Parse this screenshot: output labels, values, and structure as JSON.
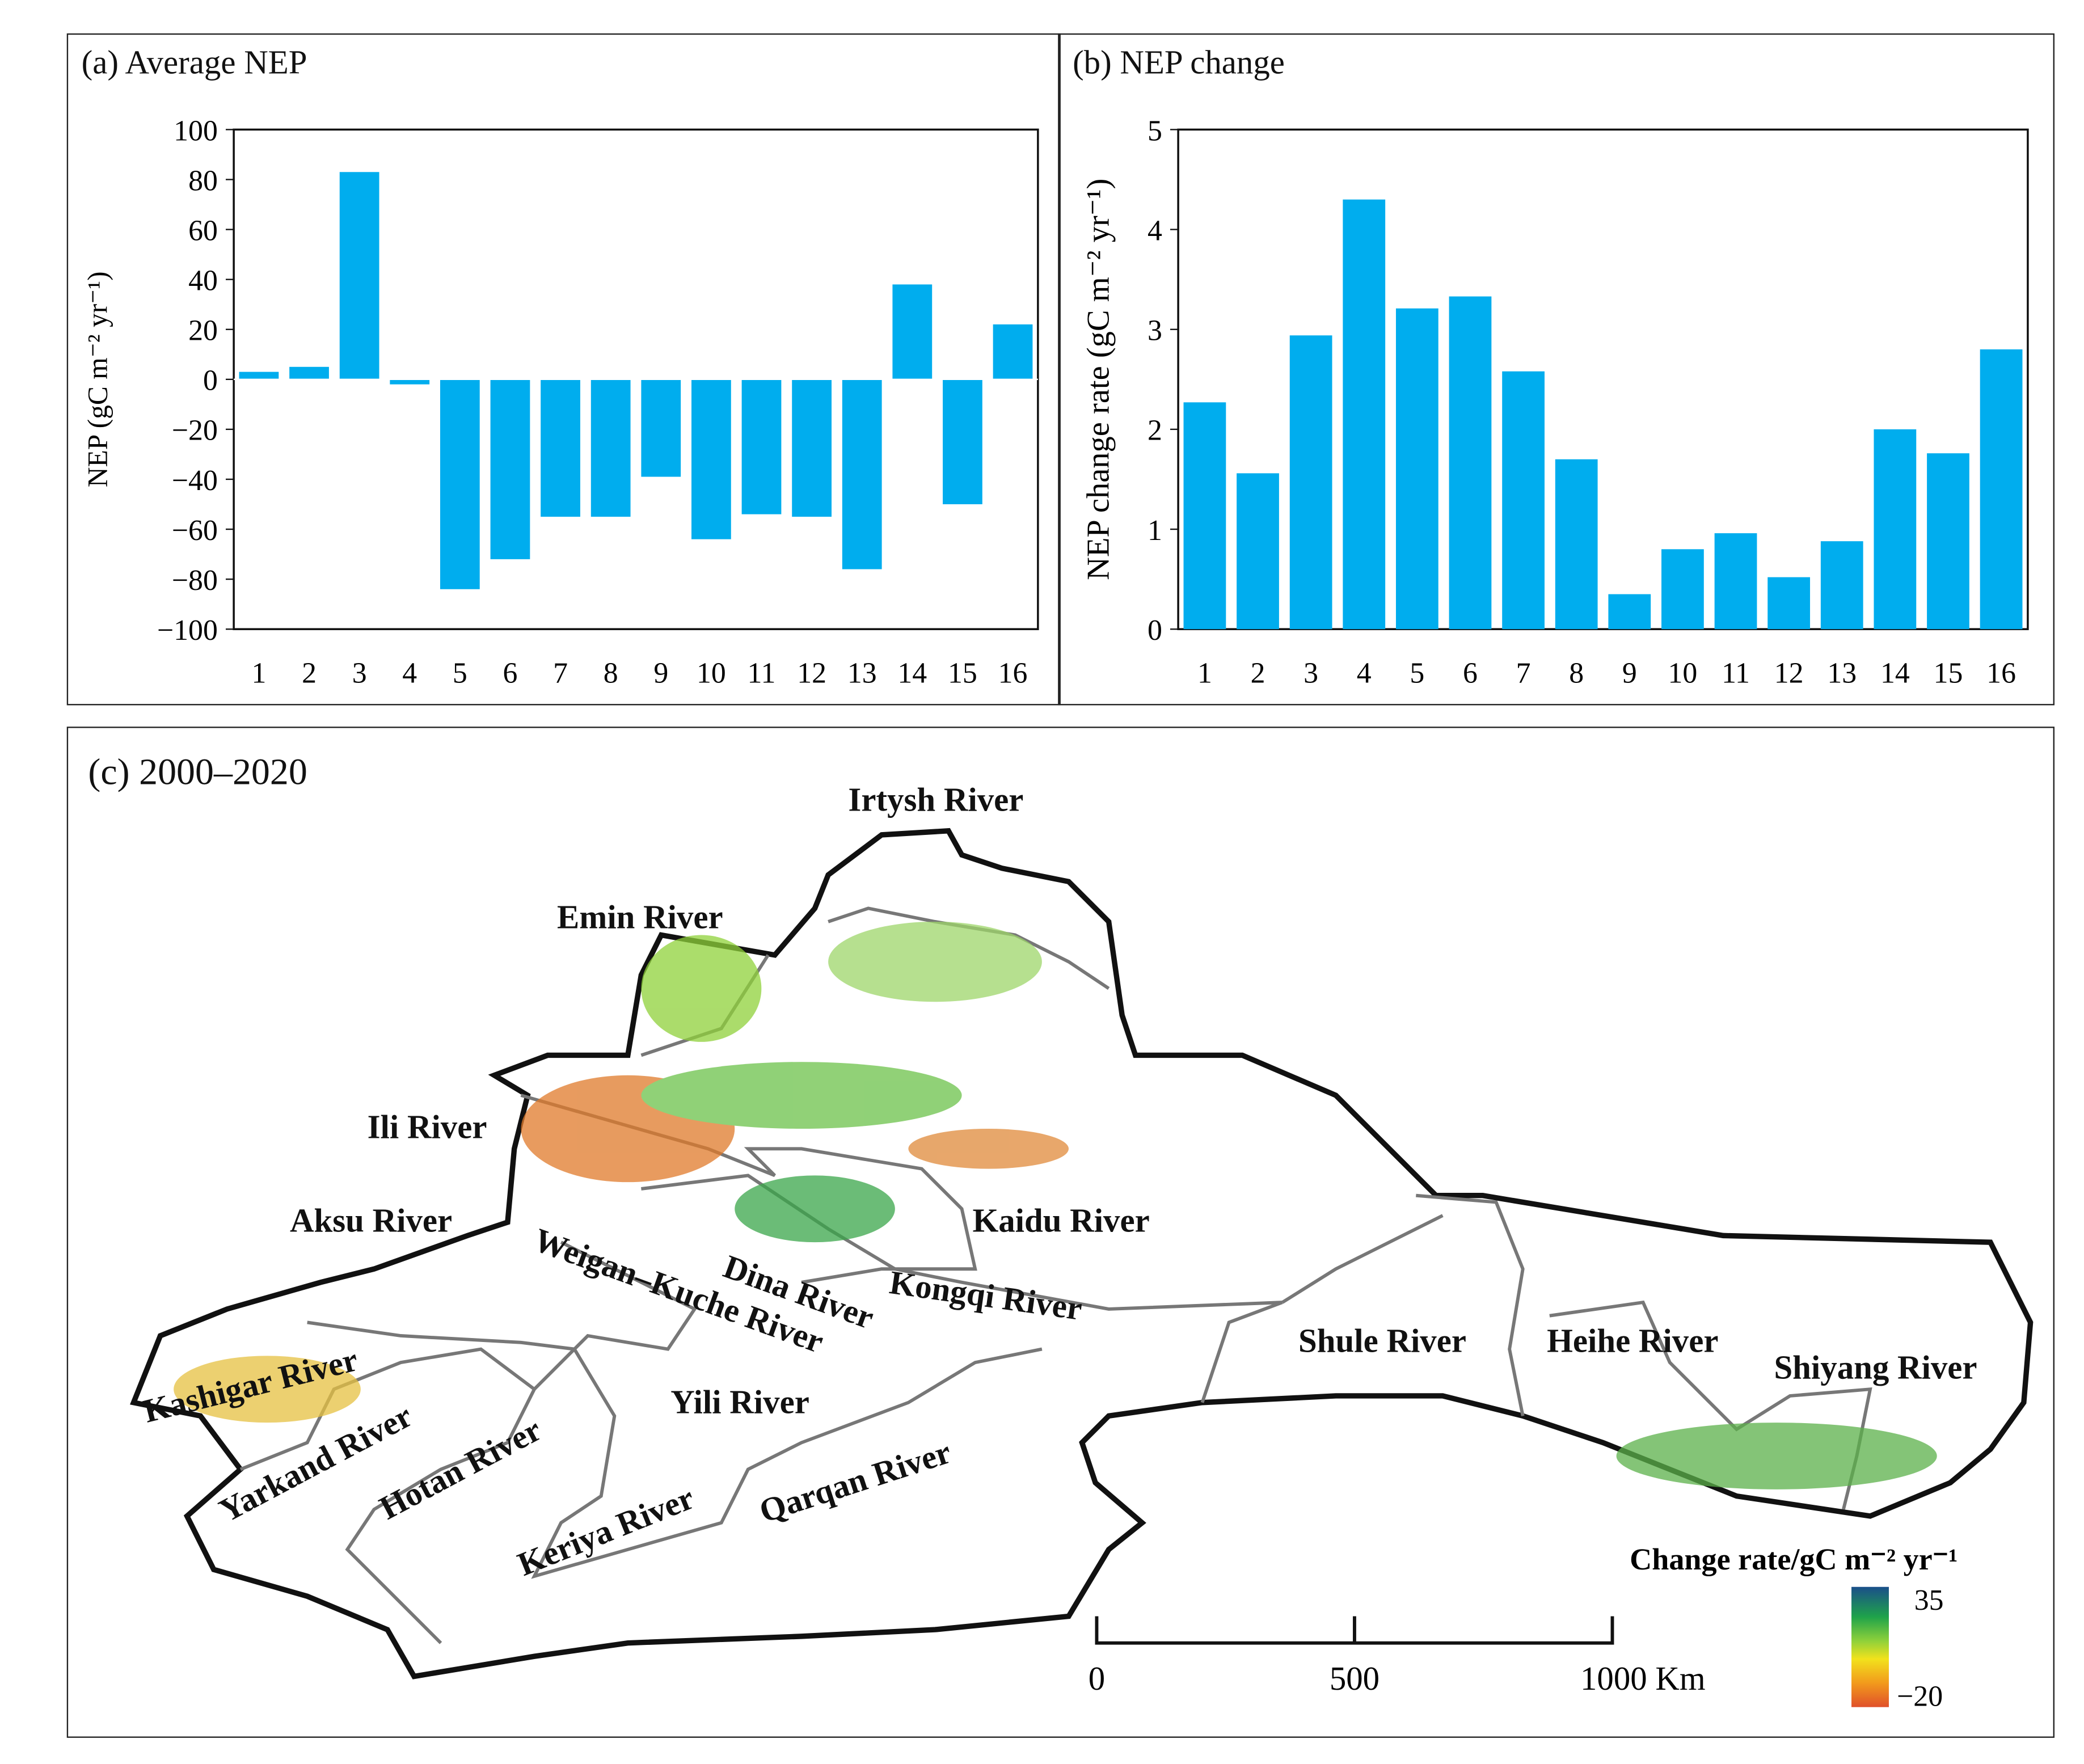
{
  "chart_data": [
    {
      "type": "bar",
      "title": "(a) Average NEP",
      "ylabel": "NEP (gC m⁻² yr⁻¹)",
      "xlabel": "",
      "categories": [
        "1",
        "2",
        "3",
        "4",
        "5",
        "6",
        "7",
        "8",
        "9",
        "10",
        "11",
        "12",
        "13",
        "14",
        "15",
        "16"
      ],
      "values": [
        3,
        5,
        83,
        -2,
        -84,
        -72,
        -55,
        -55,
        -39,
        -64,
        -54,
        -55,
        -76,
        38,
        -50,
        22
      ],
      "ylim": [
        -100,
        100
      ],
      "yticks": [
        "100",
        "80",
        "60",
        "40",
        "20",
        "0",
        "−20",
        "−40",
        "−60",
        "−80",
        "−100"
      ],
      "color": "#00adee"
    },
    {
      "type": "bar",
      "title": "(b) NEP change",
      "ylabel": "NEP change rate (gC m⁻² yr⁻¹)",
      "xlabel": "",
      "categories": [
        "1",
        "2",
        "3",
        "4",
        "5",
        "6",
        "7",
        "8",
        "9",
        "10",
        "11",
        "12",
        "13",
        "14",
        "15",
        "16"
      ],
      "values": [
        2.27,
        1.56,
        2.94,
        4.3,
        3.21,
        3.33,
        2.58,
        1.7,
        0.35,
        0.8,
        0.96,
        0.52,
        0.88,
        2.0,
        1.76,
        2.8
      ],
      "ylim": [
        0,
        5
      ],
      "yticks": [
        "5",
        "4",
        "3",
        "2",
        "1",
        "0"
      ],
      "color": "#00adee"
    }
  ],
  "map": {
    "title": "(c) 2000–2020",
    "rivers": [
      "Irtysh River",
      "Emin River",
      "Ili River",
      "Aksu River",
      "Kaidu River",
      "Weigan–Kuche River",
      "Dina River",
      "Kongqi River",
      "Kashigar River",
      "Yarkand River",
      "Hotan River",
      "Yili River",
      "Keriya River",
      "Qarqan River",
      "Shule River",
      "Heihe River",
      "Shiyang River"
    ],
    "scale": {
      "ticks": [
        "0",
        "500",
        "1000 Km"
      ]
    },
    "legend": {
      "title": "Change rate/gC m⁻² yr⁻¹",
      "max": "35",
      "min": "−20",
      "colors": [
        "#1a4f8a",
        "#1fa34a",
        "#8fd13a",
        "#f2e21c",
        "#f29a1c",
        "#e0502a"
      ]
    }
  }
}
